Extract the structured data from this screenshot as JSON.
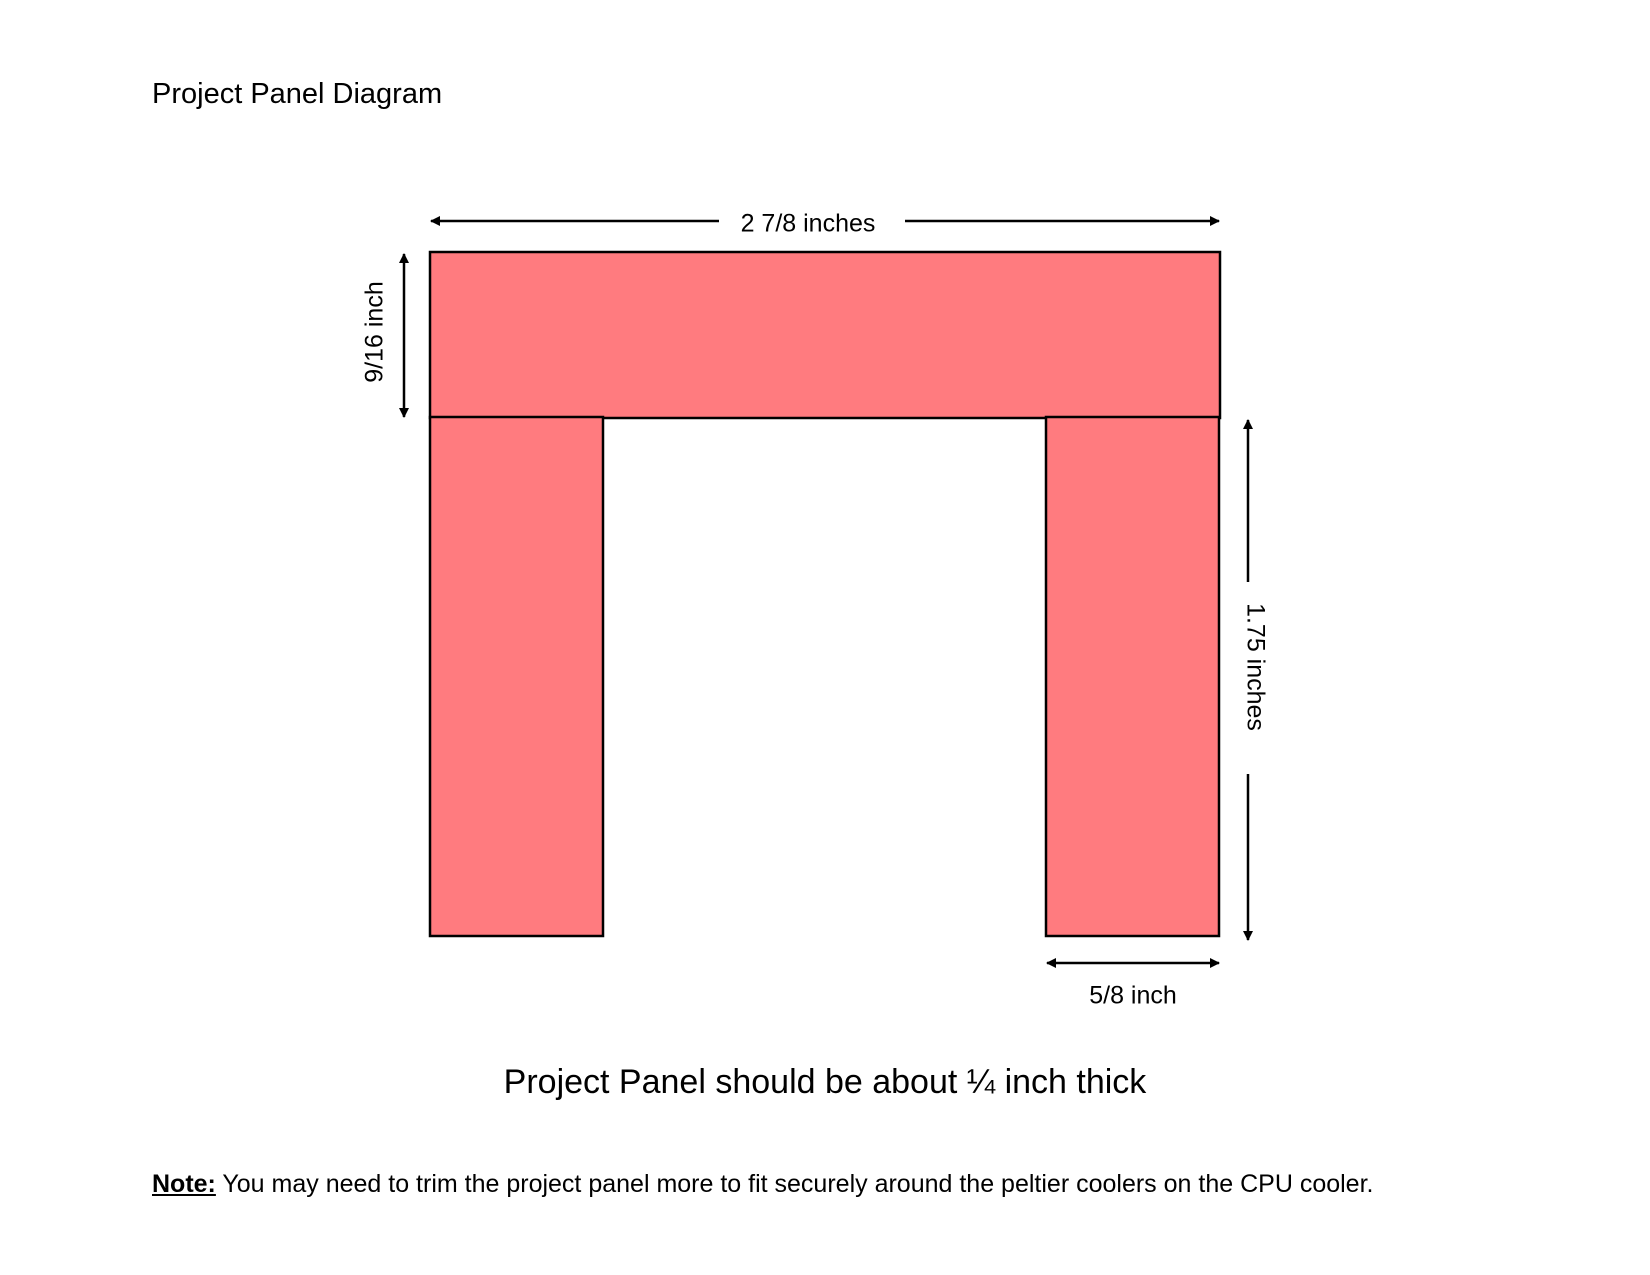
{
  "title": "Project Panel Diagram",
  "dimensions": {
    "top_width": "2 7/8 inches",
    "top_height": "9/16 inch",
    "leg_height": "1.75 inches",
    "leg_width": "5/8 inch"
  },
  "colors": {
    "panel_fill": "#ff7b7f",
    "outline": "#000000"
  },
  "thickness_note": "Project Panel should be about ¼ inch thick",
  "footnote": {
    "prefix": "Note:",
    "text": " You may need to trim the project panel more to fit securely around the peltier coolers on the CPU cooler."
  }
}
